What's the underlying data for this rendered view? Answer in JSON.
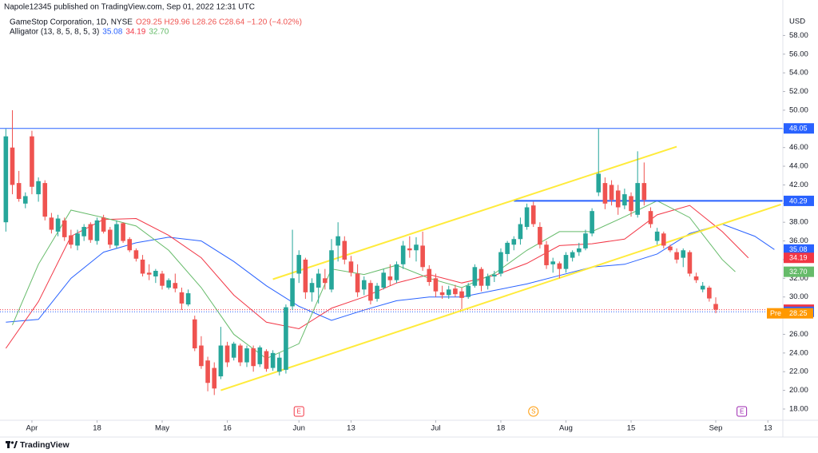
{
  "header": {
    "published": "Napole12345 published on TradingView.com, Sep 01, 2022 12:31 UTC",
    "symbol": "GameStop Corporation, 1D, NYSE",
    "ohlc": "O29.25 H29.96 L28.26 C28.64 −1.20 (−4.02%)"
  },
  "footer": {
    "brand": "TradingView"
  },
  "chart_data": {
    "type": "candlestick",
    "currency": "USD",
    "up_color": "#26a69a",
    "down_color": "#ef5350",
    "xlim": [
      -0.9,
      119.3
    ],
    "ylim": [
      16.8,
      61.8
    ],
    "grid": false,
    "xticks": [
      {
        "value": 4,
        "label": "Apr"
      },
      {
        "value": 14,
        "label": "18"
      },
      {
        "value": 24,
        "label": "May"
      },
      {
        "value": 34,
        "label": "16"
      },
      {
        "value": 45,
        "label": "Jun"
      },
      {
        "value": 53,
        "label": "13"
      },
      {
        "value": 66,
        "label": "Jul"
      },
      {
        "value": 76,
        "label": "18"
      },
      {
        "value": 86,
        "label": "Aug"
      },
      {
        "value": 96,
        "label": "15"
      },
      {
        "value": 109,
        "label": "Sep"
      },
      {
        "value": 117,
        "label": "13"
      }
    ],
    "yticks": [
      {
        "value": 18,
        "label": "18.00"
      },
      {
        "value": 20,
        "label": "20.00"
      },
      {
        "value": 22,
        "label": "22.00"
      },
      {
        "value": 24,
        "label": "24.00"
      },
      {
        "value": 26,
        "label": "26.00"
      },
      {
        "value": 28,
        "label": "28.00"
      },
      {
        "value": 30,
        "label": "30.00"
      },
      {
        "value": 32,
        "label": "32.00"
      },
      {
        "value": 34,
        "label": "34.00"
      },
      {
        "value": 36,
        "label": "36.00"
      },
      {
        "value": 38,
        "label": "38.00"
      },
      {
        "value": 40,
        "label": "40.00"
      },
      {
        "value": 42,
        "label": "42.00"
      },
      {
        "value": 44,
        "label": "44.00"
      },
      {
        "value": 46,
        "label": "46.00"
      },
      {
        "value": 48,
        "label": "48.00"
      },
      {
        "value": 50,
        "label": "50.00"
      },
      {
        "value": 52,
        "label": "52.00"
      },
      {
        "value": 54,
        "label": "54.00"
      },
      {
        "value": 56,
        "label": "56.00"
      },
      {
        "value": 58,
        "label": "58.00"
      }
    ],
    "x": [
      0,
      1,
      2,
      3,
      4,
      5,
      6,
      7,
      8,
      9,
      10,
      11,
      12,
      13,
      14,
      15,
      16,
      17,
      18,
      19,
      20,
      21,
      22,
      23,
      24,
      25,
      26,
      27,
      28,
      29,
      30,
      31,
      32,
      33,
      34,
      35,
      36,
      37,
      38,
      39,
      40,
      41,
      42,
      43,
      44,
      45,
      46,
      47,
      48,
      49,
      50,
      51,
      52,
      53,
      54,
      55,
      56,
      57,
      58,
      59,
      60,
      61,
      62,
      63,
      64,
      65,
      66,
      67,
      68,
      69,
      70,
      71,
      72,
      73,
      74,
      75,
      76,
      77,
      78,
      79,
      80,
      81,
      82,
      83,
      84,
      85,
      86,
      87,
      88,
      89,
      90,
      91,
      92,
      93,
      94,
      95,
      96,
      97,
      98,
      99,
      100,
      101,
      102,
      103,
      104,
      105,
      106,
      107,
      108,
      109
    ],
    "open": [
      38.0,
      46.0,
      42.2,
      40.0,
      47.2,
      41.0,
      42.2,
      38.5,
      37.0,
      38.2,
      36.6,
      35.5,
      36.5,
      37.8,
      36.0,
      38.5,
      37.2,
      35.5,
      37.9,
      36.2,
      35.0,
      34.0,
      32.6,
      32.2,
      32.5,
      31.0,
      31.5,
      30.5,
      29.2,
      27.6,
      24.8,
      23.2,
      22.4,
      21.5,
      24.8,
      23.5,
      24.8,
      23.0,
      24.5,
      22.8,
      24.2,
      22.4,
      22.0,
      22.2,
      29.0,
      32.5,
      34.0,
      30.5,
      31.0,
      32.0,
      30.8,
      35.5,
      36.0,
      33.8,
      32.5,
      30.8,
      31.5,
      29.8,
      31.0,
      32.2,
      31.8,
      33.5,
      35.2,
      35.0,
      35.5,
      33.0,
      32.0,
      30.5,
      30.2,
      30.9,
      30.6,
      30.0,
      31.2,
      33.0,
      31.2,
      32.2,
      32.5,
      34.6,
      35.6,
      36.2,
      37.5,
      39.8,
      37.5,
      35.6,
      33.5,
      33.6,
      33.0,
      34.2,
      34.8,
      35.2,
      36.8,
      41.2,
      42.2,
      42.0,
      41.4,
      39.8,
      40.8,
      38.8,
      42.2,
      39.2,
      36.0,
      36.8,
      35.4,
      34.8,
      34.2,
      34.8,
      32.2,
      30.8,
      31.0,
      29.25
    ],
    "high": [
      48.0,
      50.0,
      43.5,
      41.2,
      47.8,
      42.8,
      42.5,
      39.0,
      38.8,
      38.5,
      37.2,
      37.2,
      37.8,
      38.0,
      38.5,
      38.8,
      37.5,
      38.2,
      38.0,
      36.4,
      35.2,
      34.5,
      33.5,
      33.0,
      32.8,
      32.0,
      32.5,
      31.0,
      30.8,
      28.0,
      25.8,
      23.6,
      23.0,
      26.8,
      25.2,
      25.2,
      25.0,
      24.8,
      24.8,
      24.8,
      24.4,
      24.3,
      24.0,
      29.2,
      37.2,
      35.0,
      34.2,
      32.0,
      33.0,
      33.0,
      36.2,
      38.0,
      36.5,
      34.4,
      33.5,
      32.2,
      31.8,
      31.5,
      33.0,
      33.5,
      33.8,
      36.0,
      36.5,
      36.4,
      37.0,
      33.4,
      32.5,
      31.2,
      31.2,
      31.3,
      31.0,
      31.5,
      33.5,
      33.2,
      32.5,
      32.8,
      35.2,
      36.0,
      36.5,
      38.5,
      40.0,
      40.2,
      38.0,
      36.0,
      34.2,
      33.8,
      34.8,
      35.0,
      35.8,
      37.2,
      39.5,
      48.0,
      42.8,
      42.5,
      42.0,
      41.6,
      41.2,
      45.6,
      44.4,
      39.6,
      37.4,
      37.0,
      35.6,
      35.2,
      35.2,
      35.0,
      32.6,
      31.6,
      31.2,
      29.96
    ],
    "low": [
      37.0,
      41.0,
      40.2,
      39.5,
      41.0,
      40.2,
      38.2,
      36.8,
      36.5,
      36.0,
      35.2,
      35.0,
      36.0,
      35.8,
      35.6,
      36.8,
      35.2,
      35.2,
      35.8,
      34.8,
      33.8,
      32.2,
      31.8,
      31.5,
      30.8,
      30.8,
      30.5,
      28.6,
      29.0,
      24.2,
      22.3,
      19.9,
      19.5,
      21.2,
      22.5,
      23.2,
      22.6,
      22.5,
      22.0,
      22.5,
      22.0,
      22.1,
      21.6,
      21.8,
      28.6,
      31.5,
      29.8,
      29.5,
      29.3,
      30.8,
      30.5,
      33.8,
      33.5,
      32.2,
      30.0,
      30.2,
      29.2,
      29.5,
      30.8,
      31.2,
      31.5,
      33.0,
      34.2,
      33.8,
      32.8,
      31.2,
      30.0,
      29.8,
      29.8,
      30.0,
      28.7,
      29.8,
      31.0,
      30.6,
      30.8,
      31.6,
      32.2,
      33.8,
      35.0,
      35.6,
      37.2,
      37.5,
      35.2,
      33.0,
      32.6,
      32.0,
      32.6,
      33.8,
      34.4,
      35.0,
      36.5,
      40.8,
      39.4,
      39.8,
      38.8,
      39.4,
      38.6,
      38.5,
      39.8,
      37.4,
      35.6,
      35.2,
      34.8,
      33.6,
      33.2,
      32.2,
      31.5,
      30.5,
      29.5,
      28.26
    ],
    "close": [
      47.2,
      42.0,
      40.5,
      40.8,
      41.8,
      42.4,
      38.6,
      37.2,
      38.4,
      36.4,
      35.6,
      36.8,
      37.5,
      36.1,
      38.2,
      37.0,
      35.6,
      37.8,
      36.0,
      35.0,
      34.1,
      32.5,
      32.4,
      32.8,
      31.2,
      31.8,
      30.9,
      29.3,
      30.4,
      24.5,
      22.6,
      20.8,
      20.2,
      24.8,
      23.0,
      25.0,
      23.0,
      24.5,
      22.6,
      24.6,
      22.3,
      24.0,
      23.5,
      28.9,
      32.0,
      34.5,
      30.5,
      31.5,
      32.5,
      31.5,
      35.0,
      36.5,
      34.0,
      32.6,
      30.5,
      31.8,
      29.6,
      31.2,
      32.6,
      31.8,
      33.5,
      35.5,
      35.0,
      35.6,
      33.2,
      31.6,
      30.6,
      30.2,
      30.8,
      30.3,
      29.9,
      31.2,
      33.2,
      31.2,
      32.2,
      32.4,
      34.8,
      35.8,
      36.2,
      37.8,
      39.6,
      37.8,
      35.6,
      33.4,
      33.8,
      33.0,
      34.5,
      34.8,
      35.2,
      36.8,
      39.2,
      43.2,
      40.0,
      40.4,
      39.6,
      41.0,
      39.2,
      42.2,
      40.4,
      37.8,
      37.0,
      35.5,
      35.0,
      34.0,
      35.0,
      32.5,
      31.8,
      31.2,
      29.84,
      28.64
    ],
    "indicator": {
      "label": "Alligator (13, 8, 5, 8, 5, 3)",
      "lines": [
        {
          "color": "#2962ff",
          "x": [
            0,
            5,
            10,
            15,
            20,
            25,
            30,
            35,
            40,
            45,
            50,
            55,
            60,
            65,
            70,
            75,
            80,
            85,
            90,
            95,
            100,
            105,
            110,
            115,
            118
          ],
          "values": [
            27.3,
            27.6,
            32.0,
            34.8,
            35.8,
            36.4,
            36.0,
            33.8,
            31.2,
            29.0,
            27.5,
            28.6,
            29.6,
            30.0,
            30.0,
            30.7,
            31.4,
            32.3,
            33.2,
            33.5,
            34.6,
            36.8,
            37.8,
            36.5,
            35.08
          ],
          "last_label": "35.08"
        },
        {
          "color": "#f23645",
          "x": [
            0,
            5,
            10,
            15,
            20,
            25,
            30,
            35,
            40,
            45,
            50,
            55,
            60,
            65,
            70,
            75,
            80,
            85,
            90,
            95,
            100,
            105,
            110,
            114
          ],
          "values": [
            24.5,
            29.5,
            36.5,
            38.3,
            38.4,
            36.6,
            34.2,
            30.2,
            27.3,
            26.6,
            28.8,
            30.0,
            31.5,
            32.4,
            31.5,
            32.3,
            33.6,
            35.5,
            35.7,
            36.2,
            38.8,
            39.8,
            37.0,
            34.19
          ],
          "last_label": "34.19"
        },
        {
          "color": "#66bb6a",
          "x": [
            1,
            5,
            10,
            15,
            20,
            25,
            30,
            35,
            40,
            45,
            50,
            55,
            60,
            65,
            70,
            75,
            80,
            85,
            90,
            95,
            100,
            105,
            110,
            112
          ],
          "values": [
            27.0,
            33.5,
            39.3,
            38.5,
            37.6,
            35.0,
            31.0,
            26.0,
            23.4,
            25.0,
            33.0,
            32.4,
            33.4,
            32.0,
            31.0,
            32.5,
            35.0,
            37.0,
            37.0,
            38.6,
            40.3,
            38.5,
            34.0,
            32.7
          ],
          "last_label": "32.70"
        }
      ]
    },
    "levels": [
      {
        "value": 48.05,
        "color": "#2962ff",
        "style": "solid",
        "start": -0.9
      },
      {
        "value": 40.29,
        "color": "#2962ff",
        "style": "solid",
        "start": 78
      },
      {
        "value": 28.64,
        "color": "#f23645",
        "style": "dotted",
        "start": -0.9
      },
      {
        "value": 28.41,
        "color": "#2962ff",
        "style": "dotted",
        "start": -0.9
      }
    ],
    "premarket": {
      "prefix": "Pre",
      "value": 28.25,
      "color": "#ff9800"
    },
    "trendlines": [
      {
        "color": "#ffeb3b",
        "x": [
          41,
          103
        ],
        "y": [
          31.9,
          46.1
        ]
      },
      {
        "color": "#ffeb3b",
        "x": [
          33,
          119
        ],
        "y": [
          20.0,
          39.9
        ]
      }
    ],
    "events": [
      {
        "x": 45,
        "label": "E",
        "color": "#f23645"
      },
      {
        "x": 81,
        "label": "S",
        "color": "#ff9800"
      },
      {
        "x": 113,
        "label": "E",
        "color": "#9c27b0"
      }
    ]
  }
}
